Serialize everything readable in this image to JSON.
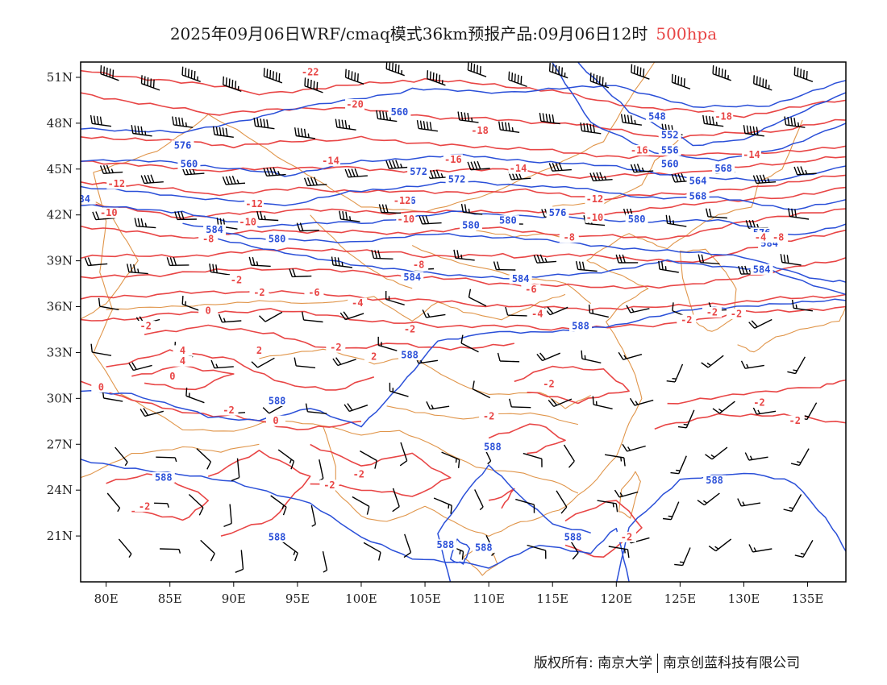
{
  "title": {
    "main": "2025年09月06日WRF/cmaq模式36km预报产品:09月06日12时",
    "level": "500hpa"
  },
  "footer": {
    "left": "版权所有: 南京大学",
    "right": "南京创蓝科技有限公司"
  },
  "colors": {
    "height_contour": "#2a4fd8",
    "temperature_contour": "#e84545",
    "boundaries": "#e0954a",
    "wind_barb": "#000000"
  },
  "map": {
    "lon_range": [
      78,
      138
    ],
    "lat_range": [
      18,
      52
    ],
    "lat_ticks": [
      "51N",
      "48N",
      "45N",
      "42N",
      "39N",
      "36N",
      "33N",
      "30N",
      "27N",
      "24N",
      "21N"
    ],
    "lon_ticks": [
      "80E",
      "85E",
      "90E",
      "95E",
      "100E",
      "105E",
      "110E",
      "115E",
      "120E",
      "125E",
      "130E",
      "135E"
    ],
    "height_labels": [
      "560",
      "548",
      "552",
      "556",
      "560",
      "564",
      "568",
      "572",
      "576",
      "576",
      "580",
      "580",
      "580",
      "584",
      "584",
      "584",
      "584",
      "560",
      "568",
      "572",
      "576",
      "576",
      "580",
      "584",
      "588",
      "588",
      "588",
      "588",
      "588",
      "588",
      "588",
      "588",
      "588",
      "588",
      "84"
    ],
    "temperature_labels": [
      "-22",
      "-20",
      "-18",
      "-18",
      "-16",
      "-16",
      "-14",
      "-14",
      "-14",
      "-12",
      "-12",
      "-12",
      "-12",
      "-10",
      "-10",
      "-10",
      "-10",
      "-8",
      "-8",
      "-8",
      "-8",
      "-6",
      "-6",
      "-4",
      "-4",
      "-4",
      "-2",
      "-2",
      "-2",
      "-2",
      "-2",
      "-2",
      "-2",
      "-2",
      "-2",
      "-2",
      "-2",
      "-2",
      "-2",
      "-2",
      "0",
      "0",
      "0",
      "0",
      "2",
      "2",
      "4",
      "4",
      "-2",
      "-2",
      "-2"
    ]
  }
}
